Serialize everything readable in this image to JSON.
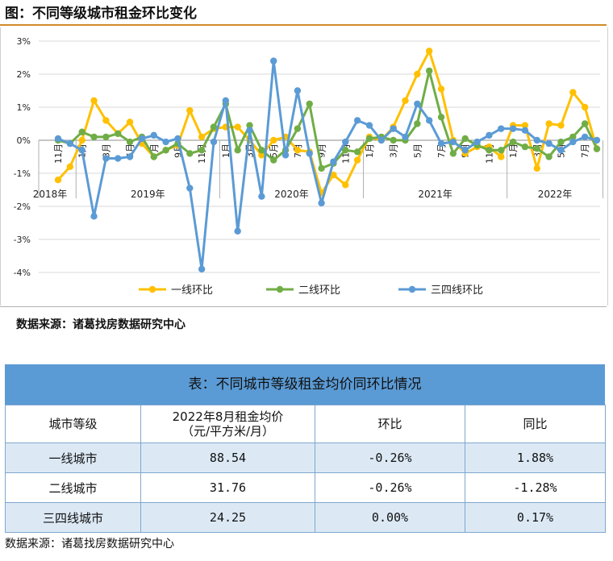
{
  "page": {
    "figure_title": "图：不同等级城市租金环比变化",
    "chart_source": "数据来源：诸葛找房数据研究中心",
    "table_source": "数据来源：诸葛找房数据研究中心"
  },
  "chart_data": {
    "type": "line",
    "title": "",
    "xlabel": "",
    "ylabel": "",
    "ylim": [
      -4,
      3
    ],
    "yticks": [
      "3%",
      "2%",
      "1%",
      "0%",
      "-1%",
      "-2%",
      "-3%",
      "-4%"
    ],
    "x": [
      "2018-11",
      "2018-12",
      "2019-01",
      "2019-02",
      "2019-03",
      "2019-04",
      "2019-05",
      "2019-06",
      "2019-07",
      "2019-08",
      "2019-09",
      "2019-10",
      "2019-11",
      "2019-12",
      "2020-01",
      "2020-02",
      "2020-03",
      "2020-04",
      "2020-05",
      "2020-06",
      "2020-07",
      "2020-08",
      "2020-09",
      "2020-10",
      "2020-11",
      "2020-12",
      "2021-01",
      "2021-02",
      "2021-03",
      "2021-04",
      "2021-05",
      "2021-06",
      "2021-07",
      "2021-08",
      "2021-09",
      "2021-10",
      "2021-11",
      "2021-12",
      "2022-01",
      "2022-02",
      "2022-03",
      "2022-04",
      "2022-05",
      "2022-06",
      "2022-07",
      "2022-08"
    ],
    "month_ticks": [
      {
        "label": "11月",
        "index": 0
      },
      {
        "label": "1月",
        "index": 2
      },
      {
        "label": "3月",
        "index": 4
      },
      {
        "label": "5月",
        "index": 6
      },
      {
        "label": "7月",
        "index": 8
      },
      {
        "label": "9月",
        "index": 10
      },
      {
        "label": "11月",
        "index": 12
      },
      {
        "label": "1月",
        "index": 14
      },
      {
        "label": "3月",
        "index": 16
      },
      {
        "label": "5月",
        "index": 18
      },
      {
        "label": "7月",
        "index": 20
      },
      {
        "label": "9月",
        "index": 22
      },
      {
        "label": "11月",
        "index": 24
      },
      {
        "label": "1月",
        "index": 26
      },
      {
        "label": "3月",
        "index": 28
      },
      {
        "label": "5月",
        "index": 30
      },
      {
        "label": "7月",
        "index": 32
      },
      {
        "label": "9月",
        "index": 34
      },
      {
        "label": "11月",
        "index": 36
      },
      {
        "label": "1月",
        "index": 38
      },
      {
        "label": "3月",
        "index": 40
      },
      {
        "label": "5月",
        "index": 42
      },
      {
        "label": "7月",
        "index": 44
      }
    ],
    "year_labels": [
      {
        "label": "2018年",
        "start": 0,
        "end": 1
      },
      {
        "label": "2019年",
        "start": 2,
        "end": 13
      },
      {
        "label": "2020年",
        "start": 14,
        "end": 25
      },
      {
        "label": "2021年",
        "start": 26,
        "end": 37
      },
      {
        "label": "2022年",
        "start": 38,
        "end": 45
      }
    ],
    "legend_position": "bottom",
    "series": [
      {
        "name": "一线环比",
        "color": "#ffc000",
        "values": [
          -1.2,
          -0.8,
          0.0,
          1.2,
          0.6,
          0.2,
          0.55,
          -0.1,
          -0.5,
          -0.3,
          -0.15,
          0.9,
          0.1,
          0.35,
          0.4,
          0.4,
          0.0,
          -0.45,
          0.0,
          0.1,
          -0.3,
          -0.35,
          -1.6,
          -1.05,
          -1.35,
          -0.6,
          0.1,
          0.0,
          0.4,
          1.2,
          2.0,
          2.7,
          1.55,
          0.0,
          -0.4,
          -0.2,
          -0.2,
          -0.5,
          0.45,
          0.45,
          -0.85,
          0.5,
          0.45,
          1.45,
          1.0,
          -0.26
        ]
      },
      {
        "name": "二线环比",
        "color": "#70ad47",
        "values": [
          0.0,
          -0.1,
          0.25,
          0.1,
          0.1,
          0.2,
          -0.05,
          0.1,
          -0.5,
          -0.3,
          -0.1,
          -0.4,
          -0.3,
          0.4,
          1.1,
          -0.3,
          0.45,
          -0.3,
          -0.6,
          -0.3,
          0.35,
          1.1,
          -0.85,
          -0.7,
          -0.3,
          -0.35,
          0.05,
          0.1,
          0.0,
          0.0,
          0.5,
          2.1,
          0.7,
          -0.4,
          0.05,
          -0.15,
          -0.3,
          -0.3,
          -0.05,
          -0.2,
          -0.25,
          -0.5,
          -0.05,
          0.1,
          0.5,
          -0.26
        ]
      },
      {
        "name": "三四线环比",
        "color": "#5b9bd5",
        "values": [
          0.05,
          -0.1,
          -0.3,
          -2.3,
          -0.55,
          -0.55,
          -0.5,
          0.05,
          0.15,
          -0.05,
          0.05,
          -1.45,
          -3.9,
          -0.05,
          1.2,
          -2.75,
          0.3,
          -1.7,
          2.4,
          -0.45,
          1.5,
          -0.4,
          -1.9,
          -0.65,
          -0.05,
          0.6,
          0.45,
          0.0,
          0.35,
          0.1,
          1.1,
          0.6,
          -0.1,
          -0.05,
          -0.3,
          -0.05,
          0.15,
          0.35,
          0.35,
          0.3,
          0.0,
          -0.1,
          -0.3,
          -0.05,
          0.1,
          0.0
        ]
      }
    ]
  },
  "table": {
    "title": "表：不同城市等级租金均价同环比情况",
    "headers": [
      "城市等级",
      "2022年8月租金均价",
      "（元/平方米/月）",
      "环比",
      "同比"
    ],
    "rows": [
      {
        "tier": "一线城市",
        "price": "88.54",
        "mom": "-0.26%",
        "yoy": "1.88%"
      },
      {
        "tier": "二线城市",
        "price": "31.76",
        "mom": "-0.26%",
        "yoy": "-1.28%"
      },
      {
        "tier": "三四线城市",
        "price": "24.25",
        "mom": "0.00%",
        "yoy": "0.17%"
      }
    ]
  }
}
